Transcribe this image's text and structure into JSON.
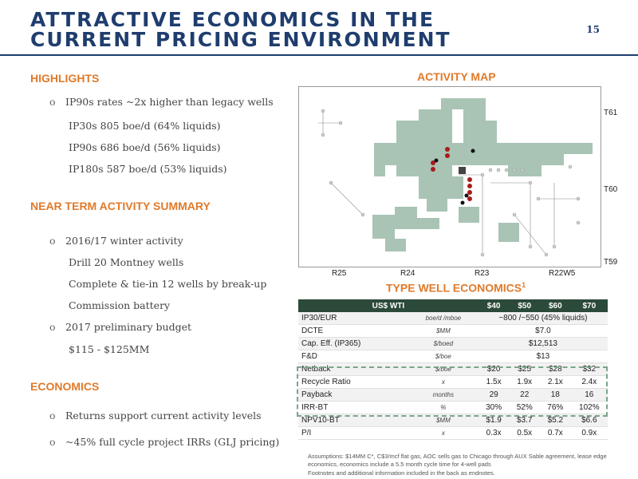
{
  "title": "ATTRACTIVE ECONOMICS IN THE CURRENT PRICING ENVIRONMENT",
  "page_number": "15",
  "highlights": {
    "heading": "HIGHLIGHTS",
    "bullet": "IP90s rates ~2x higher than legacy wells",
    "sub": [
      "IP30s 805 boe/d (64% liquids)",
      "IP90s 686 boe/d (56% liquids)",
      "IP180s 587 boe/d (53% liquids)"
    ]
  },
  "near_term": {
    "heading": "NEAR TERM ACTIVITY SUMMARY",
    "bullet1": "2016/17 winter activity",
    "sub1": [
      "Drill 20 Montney wells",
      "Complete & tie-in 12 wells by break-up",
      "Commission battery"
    ],
    "bullet2": "2017 preliminary budget",
    "sub2": "$115 - $125MM"
  },
  "economics": {
    "heading": "ECONOMICS",
    "bullets": [
      "Returns support current activity levels",
      "~45% full cycle project IRRs (GLJ pricing)"
    ]
  },
  "activity_map": {
    "heading": "ACTIVITY MAP",
    "township_labels": [
      "T61",
      "T60",
      "T59"
    ],
    "range_labels": [
      "R25",
      "R24",
      "R23",
      "R22W5"
    ]
  },
  "type_well": {
    "heading": "TYPE WELL ECONOMICS",
    "superscript": "1",
    "header": [
      "US$ WTI",
      "$40",
      "$50",
      "$60",
      "$70"
    ],
    "span_rows": [
      {
        "label": "IP30/EUR",
        "unit": "boe/d /mboe",
        "value": "~800 /~550 (45% liquids)"
      },
      {
        "label": "DCTE",
        "unit": "$MM",
        "value": "$7.0"
      },
      {
        "label": "Cap. Eff. (IP365)",
        "unit": "$/boed",
        "value": "$12,513"
      },
      {
        "label": "F&D",
        "unit": "$/boe",
        "value": "$13"
      }
    ],
    "rows": [
      {
        "label": "Netback",
        "unit": "$/boe",
        "values": [
          "$20",
          "$25",
          "$28",
          "$32"
        ]
      },
      {
        "label": "Recycle Ratio",
        "unit": "x",
        "values": [
          "1.5x",
          "1.9x",
          "2.1x",
          "2.4x"
        ]
      },
      {
        "label": "Payback",
        "unit": "months",
        "values": [
          "29",
          "22",
          "18",
          "16"
        ]
      },
      {
        "label": "IRR-BT",
        "unit": "%",
        "values": [
          "30%",
          "52%",
          "76%",
          "102%"
        ]
      },
      {
        "label": "NPV10-BT",
        "unit": "$MM",
        "values": [
          "$1.9",
          "$3.7",
          "$5.2",
          "$6.6"
        ]
      },
      {
        "label": "P/I",
        "unit": "x",
        "values": [
          "0.3x",
          "0.5x",
          "0.7x",
          "0.9x"
        ]
      }
    ]
  },
  "footnotes": [
    "Assumptions: $14MM C*, C$3/mcf flat gas, AOC sells gas to Chicago through AUX Sable agreement, lease edge economics, economics include a 5.5 month cycle time for 4-well pads",
    "Footnotes and additional information included in the back as endnotes."
  ],
  "colors": {
    "title": "#1f3d6e",
    "section": "#e07a2a",
    "land": "#a9c4b4",
    "table_header": "#2c4a3a",
    "well_red": "#a81c1c"
  }
}
